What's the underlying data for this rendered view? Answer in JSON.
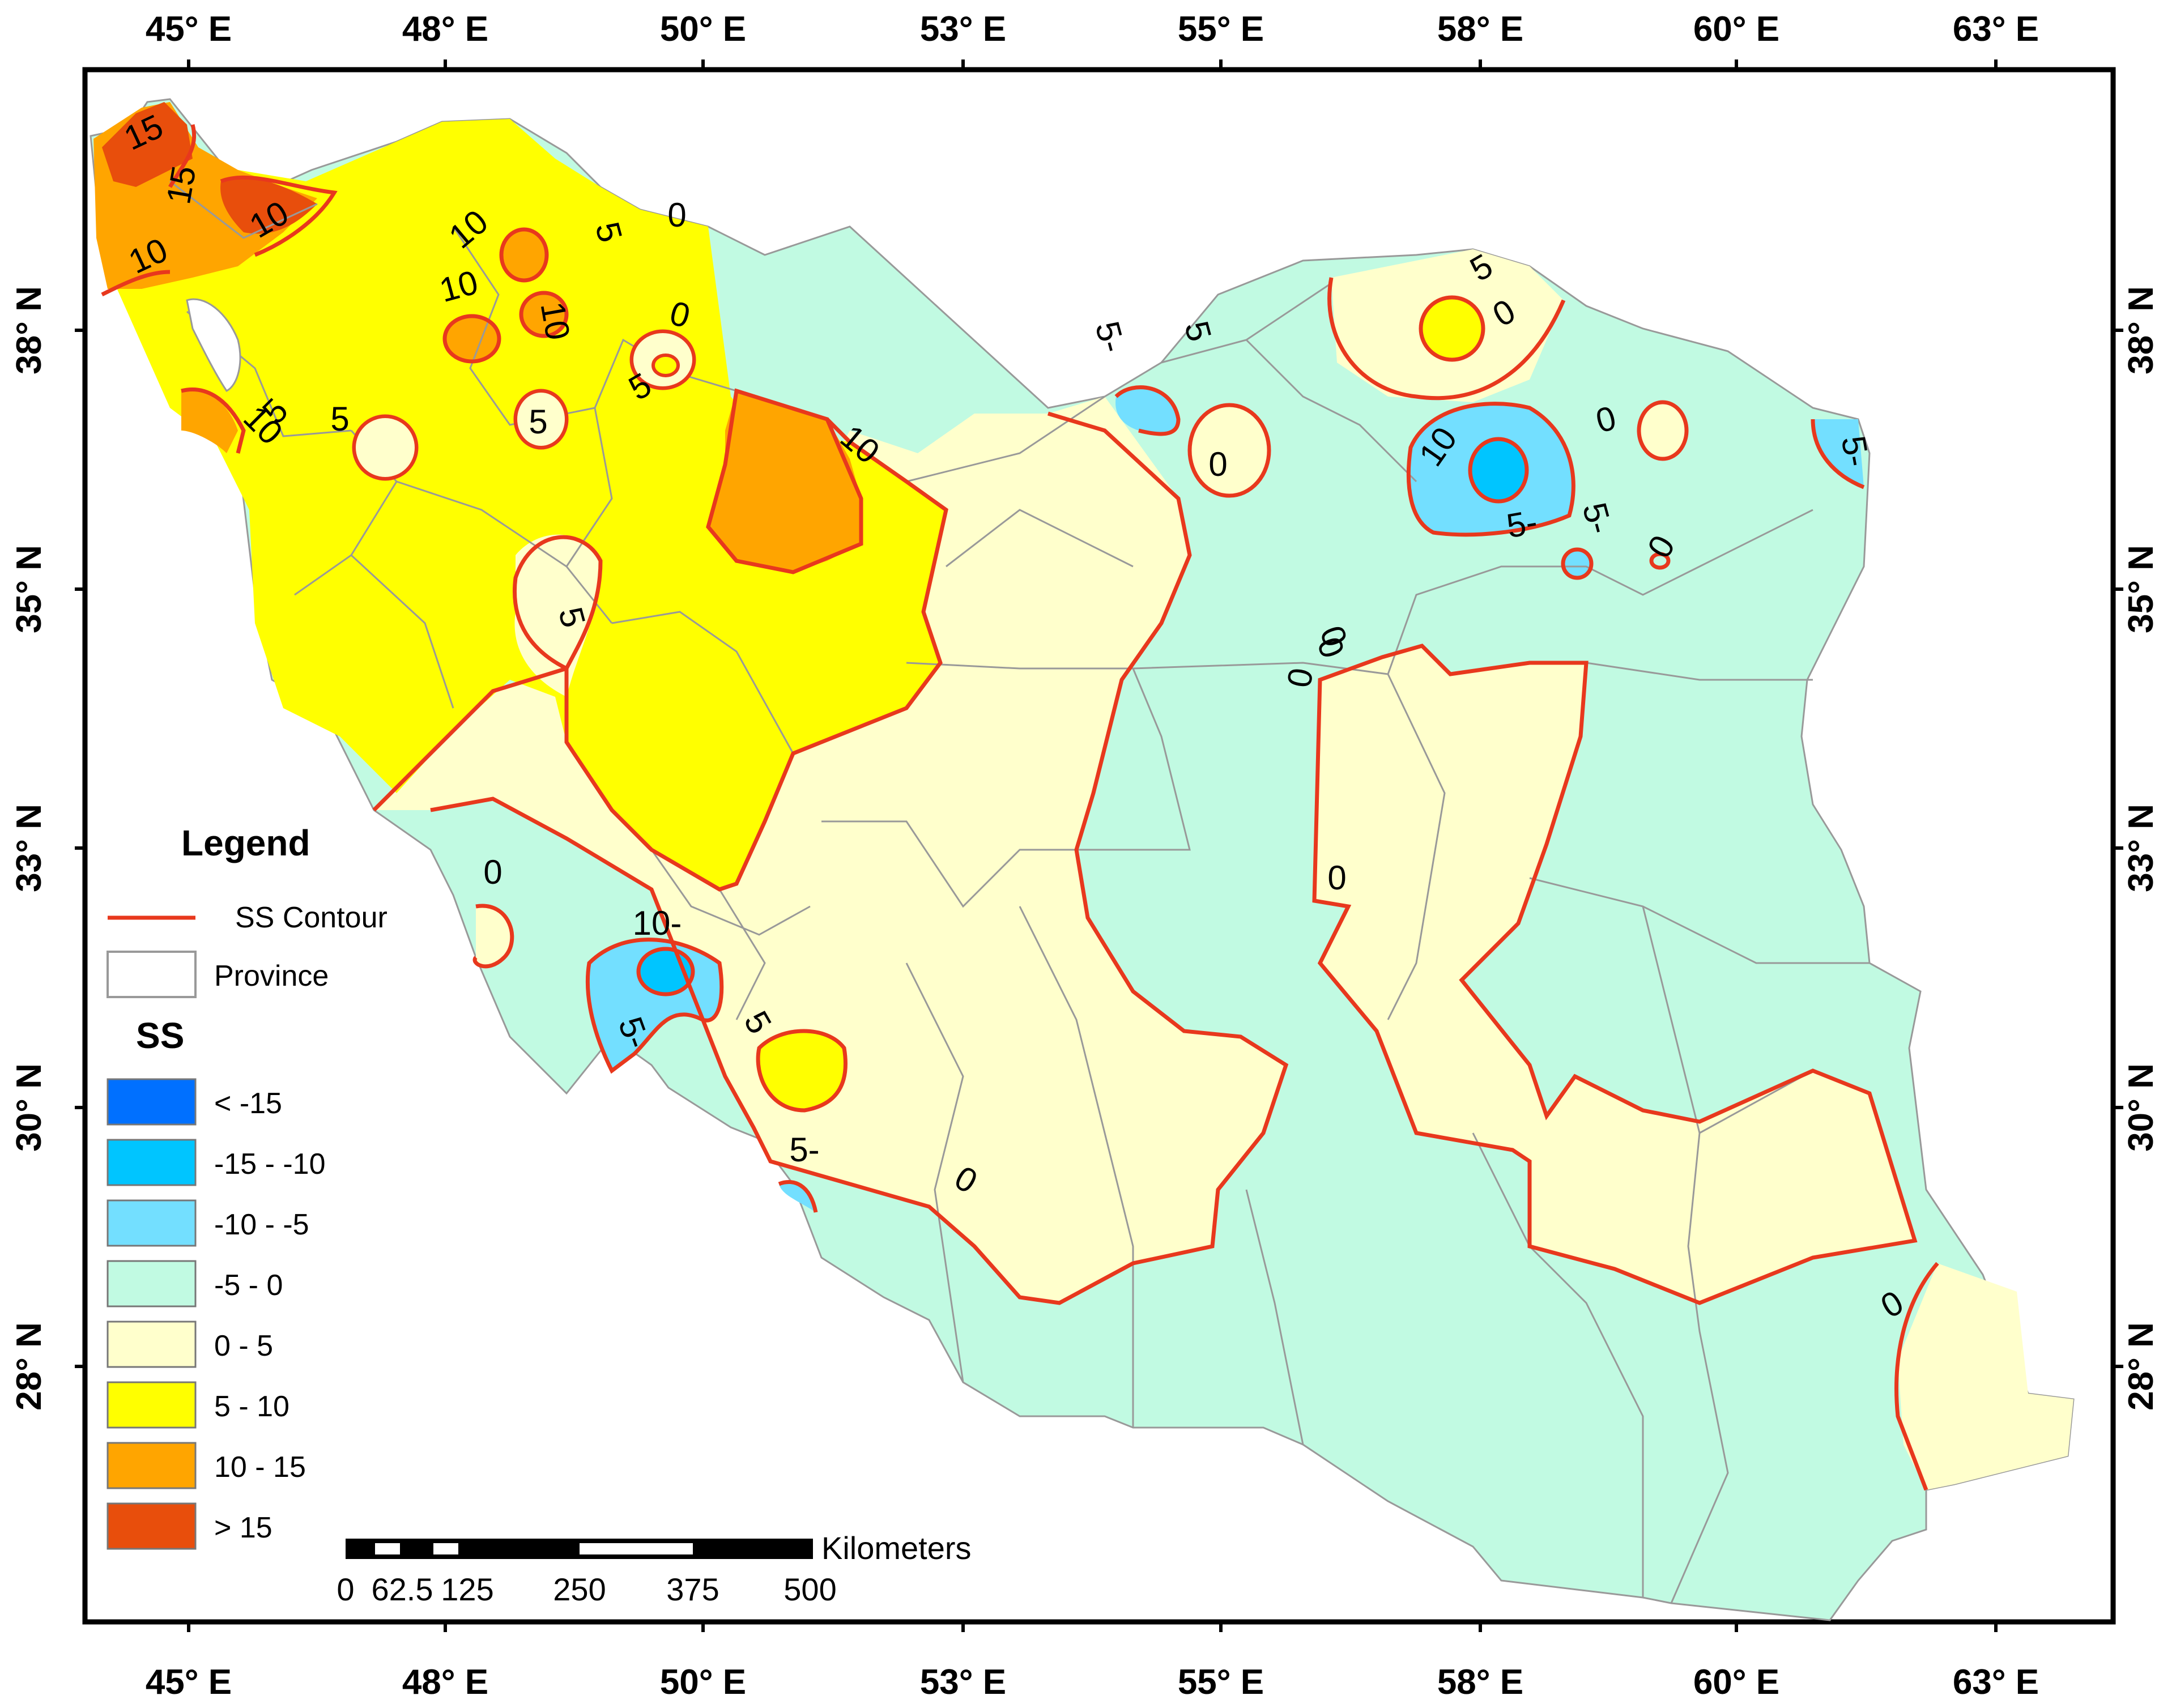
{
  "map": {
    "lon_labels": [
      "45° E",
      "48° E",
      "50° E",
      "53° E",
      "55° E",
      "58° E",
      "60° E",
      "63° E"
    ],
    "lat_labels": [
      "38° N",
      "35° N",
      "33° N",
      "30° N",
      "28° N"
    ],
    "contour_labels": [
      "15",
      "15",
      "10",
      "10",
      "10",
      "10",
      "10",
      "5",
      "5",
      "5",
      "5",
      "5",
      "10",
      "0",
      "5",
      "10",
      "5-",
      "5",
      "5",
      "0",
      "0",
      "0",
      "0",
      "10",
      "5-",
      "5-",
      "5-",
      "0",
      "0",
      "0",
      "0",
      "0",
      "0",
      "10-",
      "5-",
      "5",
      "5-",
      "0",
      "0"
    ]
  },
  "legend": {
    "title": "Legend",
    "contour_label": "SS Contour",
    "province_label": "Province",
    "ss_title": "SS",
    "classes": [
      {
        "label": "< -15",
        "color": "#0070ff"
      },
      {
        "label": "-15 - -10",
        "color": "#00c5ff"
      },
      {
        "label": "-10 - -5",
        "color": "#73dfff"
      },
      {
        "label": "-5 - 0",
        "color": "#c1fae2"
      },
      {
        "label": "0 - 5",
        "color": "#ffffcc"
      },
      {
        "label": "5 - 10",
        "color": "#ffff00"
      },
      {
        "label": "10 - 15",
        "color": "#ffa500"
      },
      {
        "label": "> 15",
        "color": "#e84e0c"
      }
    ]
  },
  "scale_bar": {
    "unit": "Kilometers",
    "labels": [
      "0",
      "62.5",
      "125",
      "250",
      "375",
      "500"
    ]
  },
  "colors": {
    "contour": "#e8381d",
    "province_border": "#999999",
    "frame": "#000000"
  }
}
